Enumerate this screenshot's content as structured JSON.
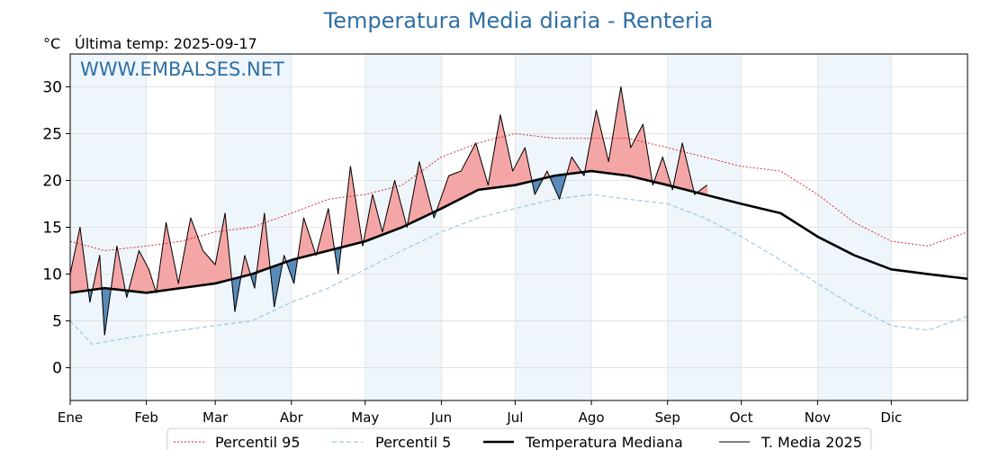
{
  "chart_data": {
    "type": "line",
    "title": "Temperatura Media diaria - Renteria",
    "unit": "°C",
    "subtitle": "Última temp: 2025-09-17",
    "watermark": "WWW.EMBALSES.NET",
    "ylim": [
      -3.5,
      33.5
    ],
    "yticks": [
      0,
      5,
      10,
      15,
      20,
      25,
      30
    ],
    "xlim": [
      1,
      366
    ],
    "months": [
      "Ene",
      "Feb",
      "Mar",
      "Abr",
      "May",
      "Jun",
      "Jul",
      "Ago",
      "Sep",
      "Oct",
      "Nov",
      "Dic"
    ],
    "month_start_days": [
      1,
      32,
      60,
      91,
      121,
      152,
      182,
      213,
      244,
      274,
      305,
      335
    ],
    "grid": true,
    "legend_position": "bottom-center",
    "colors": {
      "p95": "#e31a1c",
      "p5": "#9ecae1",
      "median": "#000000",
      "current": "#000000",
      "above": "#f4a6a6",
      "below": "#5a8ab8",
      "band": "#eef5fb"
    },
    "series": [
      {
        "name": "Percentil 95",
        "key": "p95",
        "style": "dotted",
        "x": [
          1,
          15,
          32,
          46,
          60,
          75,
          91,
          106,
          121,
          136,
          152,
          167,
          182,
          198,
          213,
          228,
          244,
          259,
          274,
          290,
          305,
          320,
          335,
          350,
          366
        ],
        "y": [
          13.5,
          12.5,
          13.0,
          13.5,
          14.5,
          15.0,
          16.5,
          18.0,
          18.5,
          19.5,
          22.5,
          24.0,
          25.0,
          24.5,
          24.5,
          24.5,
          23.5,
          22.5,
          21.5,
          21.0,
          18.5,
          15.5,
          13.5,
          13.0,
          14.5
        ]
      },
      {
        "name": "Percentil 5",
        "key": "p5",
        "style": "dashed",
        "x": [
          1,
          10,
          20,
          32,
          46,
          60,
          75,
          91,
          106,
          121,
          136,
          152,
          167,
          182,
          198,
          213,
          228,
          244,
          259,
          274,
          290,
          305,
          320,
          335,
          350,
          366
        ],
        "y": [
          5.0,
          2.5,
          3.0,
          3.5,
          4.0,
          4.5,
          5.0,
          7.0,
          8.5,
          10.5,
          12.5,
          14.5,
          16.0,
          17.0,
          18.0,
          18.5,
          18.0,
          17.5,
          16.0,
          14.0,
          11.5,
          9.0,
          6.5,
          4.5,
          4.0,
          5.5
        ]
      },
      {
        "name": "Temperatura Mediana",
        "key": "median",
        "style": "solid-thick",
        "x": [
          1,
          15,
          32,
          46,
          60,
          75,
          91,
          106,
          121,
          136,
          152,
          167,
          182,
          198,
          213,
          228,
          244,
          259,
          274,
          290,
          305,
          320,
          335,
          350,
          366
        ],
        "y": [
          8.0,
          8.5,
          8.0,
          8.5,
          9.0,
          10.0,
          11.5,
          12.5,
          13.5,
          15.0,
          17.0,
          19.0,
          19.5,
          20.5,
          21.0,
          20.5,
          19.5,
          18.5,
          17.5,
          16.5,
          14.0,
          12.0,
          10.5,
          10.0,
          9.5
        ]
      },
      {
        "name": "T. Media 2025",
        "key": "current",
        "style": "solid-thin",
        "x": [
          1,
          5,
          9,
          13,
          15,
          20,
          24,
          29,
          33,
          36,
          40,
          45,
          50,
          55,
          60,
          64,
          68,
          72,
          76,
          80,
          84,
          88,
          92,
          96,
          101,
          106,
          110,
          115,
          120,
          124,
          128,
          133,
          138,
          143,
          149,
          155,
          160,
          166,
          171,
          176,
          181,
          186,
          190,
          195,
          200,
          205,
          210,
          215,
          220,
          225,
          229,
          234,
          238,
          242,
          246,
          250,
          255,
          260
        ],
        "y": [
          10.0,
          15.0,
          7.0,
          12.0,
          3.5,
          13.0,
          7.5,
          12.5,
          10.5,
          8.0,
          15.5,
          9.0,
          16.0,
          12.5,
          11.0,
          16.5,
          6.0,
          12.0,
          8.5,
          16.5,
          6.5,
          12.0,
          9.0,
          16.0,
          12.0,
          17.0,
          10.0,
          21.5,
          13.0,
          18.5,
          14.5,
          20.0,
          15.0,
          22.0,
          16.0,
          20.5,
          21.0,
          24.0,
          19.5,
          27.0,
          21.0,
          23.5,
          18.5,
          21.0,
          18.0,
          22.5,
          20.5,
          27.5,
          22.0,
          30.0,
          23.5,
          26.0,
          19.5,
          22.5,
          19.0,
          24.0,
          18.5,
          19.5
        ]
      }
    ]
  }
}
